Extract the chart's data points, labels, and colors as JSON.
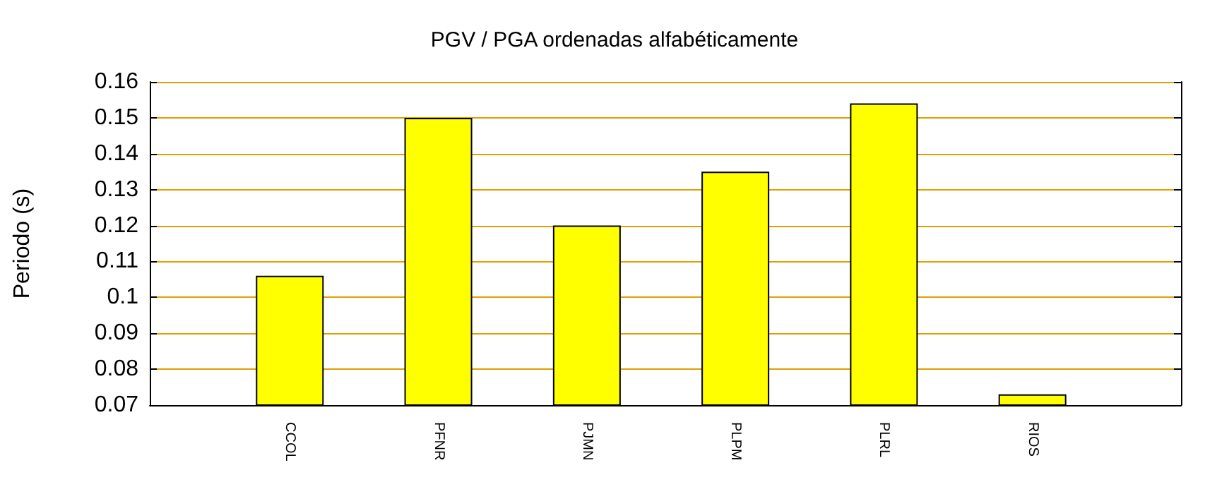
{
  "chart_data": {
    "type": "bar",
    "title": "PGV / PGA ordenadas alfabéticamente",
    "ylabel": "Periodo (s)",
    "categories": [
      "CCOL",
      "PFNR",
      "PJMN",
      "PLPM",
      "PLRL",
      "RIOS"
    ],
    "values": [
      0.106,
      0.15,
      0.12,
      0.135,
      0.154,
      0.073
    ],
    "color": "#ffff00",
    "ylim": [
      0.07,
      0.16
    ],
    "yticks": [
      0.07,
      0.08,
      0.09,
      0.1,
      0.11,
      0.12,
      0.13,
      0.14,
      0.15,
      0.16
    ],
    "grid": "y"
  }
}
